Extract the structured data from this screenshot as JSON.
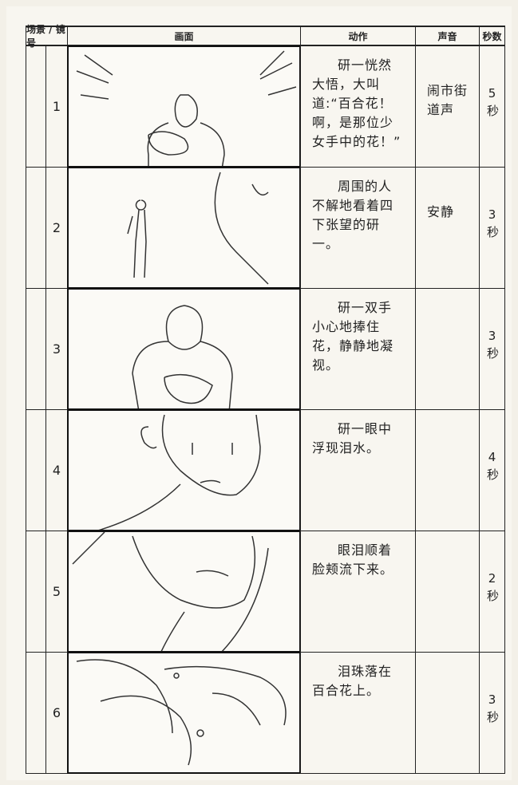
{
  "header": {
    "scene_shot": "场景 / 镜号",
    "picture": "画面",
    "action": "动作",
    "sound": "声音",
    "seconds": "秒数"
  },
  "rows": [
    {
      "shot": "1",
      "action": "研一恍然大悟，大叫道:“百合花！啊，是那位少女手中的花！”",
      "sound": "闹市街道声",
      "seconds": "5秒"
    },
    {
      "shot": "2",
      "action": "周围的人不解地看着四下张望的研一。",
      "sound": "安静",
      "seconds": "3秒"
    },
    {
      "shot": "3",
      "action": "研一双手小心地捧住花，静静地凝视。",
      "seconds": "3秒"
    },
    {
      "shot": "4",
      "action": "研一眼中浮现泪水。",
      "seconds": "4秒"
    },
    {
      "shot": "5",
      "action": "眼泪顺着脸颊流下来。",
      "seconds": "2秒"
    },
    {
      "shot": "6",
      "action": "泪珠落在百合花上。",
      "seconds": "3秒"
    }
  ]
}
